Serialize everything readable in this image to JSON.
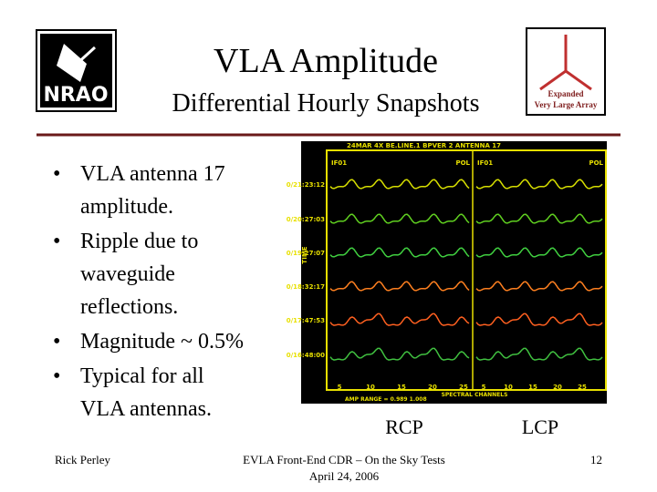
{
  "header": {
    "title": "VLA Amplitude",
    "subtitle": "Differential Hourly Snapshots"
  },
  "logos": {
    "left": "NRAO",
    "right": [
      "Expanded",
      "Very Large Array"
    ]
  },
  "bullets": [
    [
      "VLA antenna 17",
      "amplitude."
    ],
    [
      "Ripple due to",
      "waveguide",
      "reflections."
    ],
    [
      "Magnitude ~ 0.5%"
    ],
    [
      "Typical for all",
      "VLA antennas."
    ]
  ],
  "plot": {
    "header": "24MAR 4X BE.LINE.1 BPVER 2 ANTENNA 17",
    "panels": [
      {
        "if": "IF01",
        "pol": "POL"
      },
      {
        "if": "IF01",
        "pol": "POL"
      }
    ],
    "times": [
      "0/21:23:12",
      "0/20:27:03",
      "0/19:27:07",
      "0/18:32:17",
      "0/17:47:53",
      "0/16:48:00"
    ],
    "y_label": "TIME",
    "x_ticks": [
      "5",
      "10",
      "15",
      "20",
      "25",
      "5",
      "10",
      "15",
      "20",
      "25"
    ],
    "x_label": "SPECTRAL CHANNELS",
    "amp_range": "AMP RANGE = 0.989 1.008"
  },
  "captions": [
    "RCP",
    "LCP"
  ],
  "footer": {
    "author": "Rick Perley",
    "event": [
      "EVLA Front-End CDR – On the Sky Tests",
      "April 24, 2006"
    ],
    "page": "12"
  }
}
